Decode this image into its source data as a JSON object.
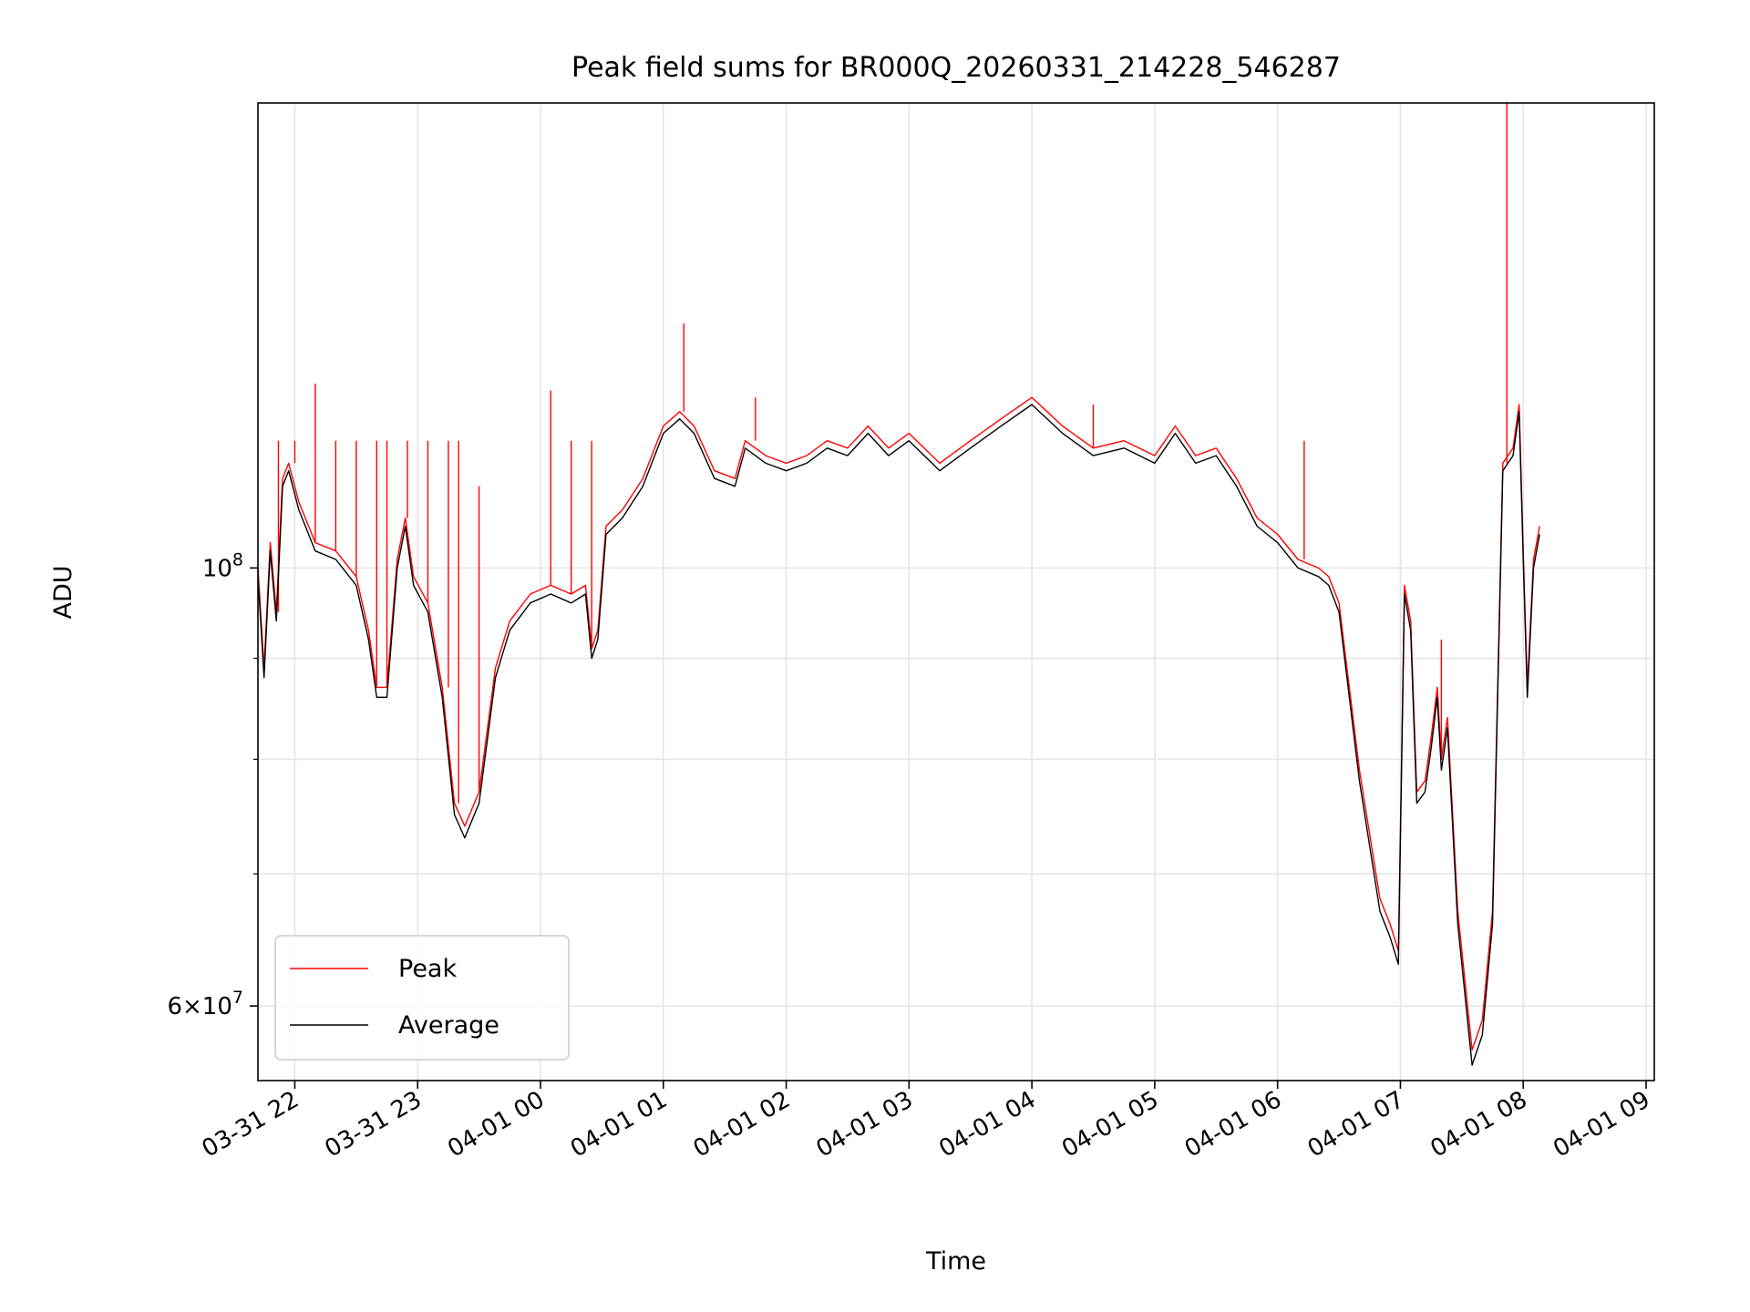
{
  "chart_data": {
    "type": "line",
    "title": "Peak field sums for BR000Q_20260331_214228_546287",
    "xlabel": "Time",
    "ylabel": "ADU",
    "yscale": "log",
    "ylim": [
      55000000.0,
      172000000.0
    ],
    "xlim": [
      "2026-03-31 21:42",
      "2026-04-01 09:04"
    ],
    "grid": true,
    "legend_position": "lower left",
    "colors": {
      "peak": "#ff0000",
      "average": "#000000",
      "grid": "#e5e5e5"
    },
    "x_ticks": [
      {
        "label": "03-31 22",
        "t": "2026-03-31 22:00"
      },
      {
        "label": "03-31 23",
        "t": "2026-03-31 23:00"
      },
      {
        "label": "04-01 00",
        "t": "2026-04-01 00:00"
      },
      {
        "label": "04-01 01",
        "t": "2026-04-01 01:00"
      },
      {
        "label": "04-01 02",
        "t": "2026-04-01 02:00"
      },
      {
        "label": "04-01 03",
        "t": "2026-04-01 03:00"
      },
      {
        "label": "04-01 04",
        "t": "2026-04-01 04:00"
      },
      {
        "label": "04-01 05",
        "t": "2026-04-01 05:00"
      },
      {
        "label": "04-01 06",
        "t": "2026-04-01 06:00"
      },
      {
        "label": "04-01 07",
        "t": "2026-04-01 07:00"
      },
      {
        "label": "04-01 08",
        "t": "2026-04-01 08:00"
      },
      {
        "label": "04-01 09",
        "t": "2026-04-01 09:00"
      }
    ],
    "y_ticks_major": [
      {
        "base": "10",
        "exp": "8",
        "value": 100000000.0
      },
      {
        "base": "6×10",
        "exp": "7",
        "value": 60000000.0
      }
    ],
    "y_ticks_minor": [
      70000000.0,
      80000000.0,
      90000000.0
    ],
    "series": [
      {
        "name": "Average",
        "points": [
          [
            "2026-03-31 21:42",
            99000000.0
          ],
          [
            "2026-03-31 21:45",
            88000000.0
          ],
          [
            "2026-03-31 21:48",
            102000000.0
          ],
          [
            "2026-03-31 21:51",
            94000000.0
          ],
          [
            "2026-03-31 21:54",
            110000000.0
          ],
          [
            "2026-03-31 21:57",
            112000000.0
          ],
          [
            "2026-03-31 22:02",
            107000000.0
          ],
          [
            "2026-03-31 22:10",
            102000000.0
          ],
          [
            "2026-03-31 22:20",
            101000000.0
          ],
          [
            "2026-03-31 22:30",
            98000000.0
          ],
          [
            "2026-03-31 22:36",
            92000000.0
          ],
          [
            "2026-03-31 22:40",
            86000000.0
          ],
          [
            "2026-03-31 22:45",
            86000000.0
          ],
          [
            "2026-03-31 22:50",
            100000000.0
          ],
          [
            "2026-03-31 22:54",
            105000000.0
          ],
          [
            "2026-03-31 22:58",
            98000000.0
          ],
          [
            "2026-03-31 23:05",
            95000000.0
          ],
          [
            "2026-03-31 23:12",
            86000000.0
          ],
          [
            "2026-03-31 23:18",
            75000000.0
          ],
          [
            "2026-03-31 23:23",
            73000000.0
          ],
          [
            "2026-03-31 23:30",
            76000000.0
          ],
          [
            "2026-03-31 23:38",
            88000000.0
          ],
          [
            "2026-03-31 23:45",
            93000000.0
          ],
          [
            "2026-03-31 23:55",
            96000000.0
          ],
          [
            "2026-04-01 00:05",
            97000000.0
          ],
          [
            "2026-04-01 00:15",
            96000000.0
          ],
          [
            "2026-04-01 00:22",
            97000000.0
          ],
          [
            "2026-04-01 00:25",
            90000000.0
          ],
          [
            "2026-04-01 00:28",
            92000000.0
          ],
          [
            "2026-04-01 00:32",
            104000000.0
          ],
          [
            "2026-04-01 00:40",
            106000000.0
          ],
          [
            "2026-04-01 00:50",
            110000000.0
          ],
          [
            "2026-04-01 01:00",
            117000000.0
          ],
          [
            "2026-04-01 01:08",
            119000000.0
          ],
          [
            "2026-04-01 01:15",
            117000000.0
          ],
          [
            "2026-04-01 01:25",
            111000000.0
          ],
          [
            "2026-04-01 01:35",
            110000000.0
          ],
          [
            "2026-04-01 01:40",
            115000000.0
          ],
          [
            "2026-04-01 01:50",
            113000000.0
          ],
          [
            "2026-04-01 02:00",
            112000000.0
          ],
          [
            "2026-04-01 02:10",
            113000000.0
          ],
          [
            "2026-04-01 02:20",
            115000000.0
          ],
          [
            "2026-04-01 02:30",
            114000000.0
          ],
          [
            "2026-04-01 02:40",
            117000000.0
          ],
          [
            "2026-04-01 02:50",
            114000000.0
          ],
          [
            "2026-04-01 03:00",
            116000000.0
          ],
          [
            "2026-04-01 03:15",
            112000000.0
          ],
          [
            "2026-04-01 03:30",
            115000000.0
          ],
          [
            "2026-04-01 03:45",
            118000000.0
          ],
          [
            "2026-04-01 04:00",
            121000000.0
          ],
          [
            "2026-04-01 04:15",
            117000000.0
          ],
          [
            "2026-04-01 04:30",
            114000000.0
          ],
          [
            "2026-04-01 04:45",
            115000000.0
          ],
          [
            "2026-04-01 05:00",
            113000000.0
          ],
          [
            "2026-04-01 05:10",
            117000000.0
          ],
          [
            "2026-04-01 05:20",
            113000000.0
          ],
          [
            "2026-04-01 05:30",
            114000000.0
          ],
          [
            "2026-04-01 05:40",
            110000000.0
          ],
          [
            "2026-04-01 05:50",
            105000000.0
          ],
          [
            "2026-04-01 05:55",
            104000000.0
          ],
          [
            "2026-04-01 06:00",
            103000000.0
          ],
          [
            "2026-04-01 06:10",
            100000000.0
          ],
          [
            "2026-04-01 06:20",
            99000000.0
          ],
          [
            "2026-04-01 06:25",
            98000000.0
          ],
          [
            "2026-04-01 06:30",
            95000000.0
          ],
          [
            "2026-04-01 06:40",
            78000000.0
          ],
          [
            "2026-04-01 06:50",
            67000000.0
          ],
          [
            "2026-04-01 06:55",
            65000000.0
          ],
          [
            "2026-04-01 06:59",
            63000000.0
          ],
          [
            "2026-04-01 07:02",
            97000000.0
          ],
          [
            "2026-04-01 07:05",
            93000000.0
          ],
          [
            "2026-04-01 07:08",
            76000000.0
          ],
          [
            "2026-04-01 07:12",
            77000000.0
          ],
          [
            "2026-04-01 07:15",
            81000000.0
          ],
          [
            "2026-04-01 07:18",
            86000000.0
          ],
          [
            "2026-04-01 07:20",
            79000000.0
          ],
          [
            "2026-04-01 07:23",
            83000000.0
          ],
          [
            "2026-04-01 07:28",
            66000000.0
          ],
          [
            "2026-04-01 07:35",
            56000000.0
          ],
          [
            "2026-04-01 07:40",
            58000000.0
          ],
          [
            "2026-04-01 07:45",
            66000000.0
          ],
          [
            "2026-04-01 07:50",
            112000000.0
          ],
          [
            "2026-04-01 07:55",
            114000000.0
          ],
          [
            "2026-04-01 07:58",
            120000000.0
          ],
          [
            "2026-04-01 08:00",
            101000000.0
          ],
          [
            "2026-04-01 08:02",
            86000000.0
          ],
          [
            "2026-04-01 08:05",
            100000000.0
          ],
          [
            "2026-04-01 08:08",
            104000000.0
          ]
        ]
      },
      {
        "name": "Peak",
        "points": [
          [
            "2026-03-31 21:42",
            100000000.0
          ],
          [
            "2026-03-31 21:45",
            89000000.0
          ],
          [
            "2026-03-31 21:48",
            103000000.0
          ],
          [
            "2026-03-31 21:51",
            95000000.0
          ],
          [
            "2026-03-31 21:54",
            111000000.0
          ],
          [
            "2026-03-31 21:57",
            113000000.0
          ],
          [
            "2026-03-31 22:02",
            108000000.0
          ],
          [
            "2026-03-31 22:10",
            103000000.0
          ],
          [
            "2026-03-31 22:20",
            102000000.0
          ],
          [
            "2026-03-31 22:30",
            99000000.0
          ],
          [
            "2026-03-31 22:36",
            93000000.0
          ],
          [
            "2026-03-31 22:40",
            87000000.0
          ],
          [
            "2026-03-31 22:45",
            87000000.0
          ],
          [
            "2026-03-31 22:50",
            101000000.0
          ],
          [
            "2026-03-31 22:54",
            106000000.0
          ],
          [
            "2026-03-31 22:58",
            99000000.0
          ],
          [
            "2026-03-31 23:05",
            96000000.0
          ],
          [
            "2026-03-31 23:12",
            87000000.0
          ],
          [
            "2026-03-31 23:18",
            76000000.0
          ],
          [
            "2026-03-31 23:23",
            74000000.0
          ],
          [
            "2026-03-31 23:30",
            77000000.0
          ],
          [
            "2026-03-31 23:38",
            89000000.0
          ],
          [
            "2026-03-31 23:45",
            94000000.0
          ],
          [
            "2026-03-31 23:55",
            97000000.0
          ],
          [
            "2026-04-01 00:05",
            98000000.0
          ],
          [
            "2026-04-01 00:15",
            97000000.0
          ],
          [
            "2026-04-01 00:22",
            98000000.0
          ],
          [
            "2026-04-01 00:25",
            91000000.0
          ],
          [
            "2026-04-01 00:28",
            93000000.0
          ],
          [
            "2026-04-01 00:32",
            105000000.0
          ],
          [
            "2026-04-01 00:40",
            107000000.0
          ],
          [
            "2026-04-01 00:50",
            111000000.0
          ],
          [
            "2026-04-01 01:00",
            118000000.0
          ],
          [
            "2026-04-01 01:08",
            120000000.0
          ],
          [
            "2026-04-01 01:15",
            118000000.0
          ],
          [
            "2026-04-01 01:25",
            112000000.0
          ],
          [
            "2026-04-01 01:35",
            111000000.0
          ],
          [
            "2026-04-01 01:40",
            116000000.0
          ],
          [
            "2026-04-01 01:50",
            114000000.0
          ],
          [
            "2026-04-01 02:00",
            113000000.0
          ],
          [
            "2026-04-01 02:10",
            114000000.0
          ],
          [
            "2026-04-01 02:20",
            116000000.0
          ],
          [
            "2026-04-01 02:30",
            115000000.0
          ],
          [
            "2026-04-01 02:40",
            118000000.0
          ],
          [
            "2026-04-01 02:50",
            115000000.0
          ],
          [
            "2026-04-01 03:00",
            117000000.0
          ],
          [
            "2026-04-01 03:15",
            113000000.0
          ],
          [
            "2026-04-01 03:30",
            116000000.0
          ],
          [
            "2026-04-01 03:45",
            119000000.0
          ],
          [
            "2026-04-01 04:00",
            122000000.0
          ],
          [
            "2026-04-01 04:15",
            118000000.0
          ],
          [
            "2026-04-01 04:30",
            115000000.0
          ],
          [
            "2026-04-01 04:45",
            116000000.0
          ],
          [
            "2026-04-01 05:00",
            114000000.0
          ],
          [
            "2026-04-01 05:10",
            118000000.0
          ],
          [
            "2026-04-01 05:20",
            114000000.0
          ],
          [
            "2026-04-01 05:30",
            115000000.0
          ],
          [
            "2026-04-01 05:40",
            111000000.0
          ],
          [
            "2026-04-01 05:50",
            106000000.0
          ],
          [
            "2026-04-01 05:55",
            105000000.0
          ],
          [
            "2026-04-01 06:00",
            104000000.0
          ],
          [
            "2026-04-01 06:10",
            101000000.0
          ],
          [
            "2026-04-01 06:20",
            100000000.0
          ],
          [
            "2026-04-01 06:25",
            99000000.0
          ],
          [
            "2026-04-01 06:30",
            96000000.0
          ],
          [
            "2026-04-01 06:40",
            79000000.0
          ],
          [
            "2026-04-01 06:50",
            68000000.0
          ],
          [
            "2026-04-01 06:55",
            66000000.0
          ],
          [
            "2026-04-01 06:59",
            64000000.0
          ],
          [
            "2026-04-01 07:02",
            98000000.0
          ],
          [
            "2026-04-01 07:05",
            94000000.0
          ],
          [
            "2026-04-01 07:08",
            77000000.0
          ],
          [
            "2026-04-01 07:12",
            78000000.0
          ],
          [
            "2026-04-01 07:15",
            82000000.0
          ],
          [
            "2026-04-01 07:18",
            87000000.0
          ],
          [
            "2026-04-01 07:20",
            80000000.0
          ],
          [
            "2026-04-01 07:23",
            84000000.0
          ],
          [
            "2026-04-01 07:28",
            67000000.0
          ],
          [
            "2026-04-01 07:35",
            57000000.0
          ],
          [
            "2026-04-01 07:40",
            59000000.0
          ],
          [
            "2026-04-01 07:45",
            67000000.0
          ],
          [
            "2026-04-01 07:50",
            113000000.0
          ],
          [
            "2026-04-01 07:55",
            115000000.0
          ],
          [
            "2026-04-01 07:58",
            121000000.0
          ],
          [
            "2026-04-01 08:00",
            102000000.0
          ],
          [
            "2026-04-01 08:02",
            87000000.0
          ],
          [
            "2026-04-01 08:05",
            101000000.0
          ],
          [
            "2026-04-01 08:08",
            105000000.0
          ]
        ],
        "spikes": [
          [
            "2026-03-31 21:52",
            116000000.0
          ],
          [
            "2026-03-31 22:00",
            116000000.0
          ],
          [
            "2026-03-31 22:10",
            124000000.0
          ],
          [
            "2026-03-31 22:20",
            116000000.0
          ],
          [
            "2026-03-31 22:30",
            116000000.0
          ],
          [
            "2026-03-31 22:40",
            116000000.0
          ],
          [
            "2026-03-31 22:45",
            116000000.0
          ],
          [
            "2026-03-31 22:55",
            116000000.0
          ],
          [
            "2026-03-31 23:05",
            116000000.0
          ],
          [
            "2026-03-31 23:15",
            116000000.0
          ],
          [
            "2026-03-31 23:20",
            116000000.0
          ],
          [
            "2026-03-31 23:30",
            110000000.0
          ],
          [
            "2026-04-01 00:05",
            123000000.0
          ],
          [
            "2026-04-01 00:15",
            116000000.0
          ],
          [
            "2026-04-01 00:25",
            116000000.0
          ],
          [
            "2026-04-01 01:10",
            133000000.0
          ],
          [
            "2026-04-01 01:45",
            122000000.0
          ],
          [
            "2026-04-01 04:30",
            121000000.0
          ],
          [
            "2026-04-01 06:13",
            116000000.0
          ],
          [
            "2026-04-01 07:20",
            92000000.0
          ],
          [
            "2026-04-01 07:52",
            172000000.0
          ]
        ]
      }
    ]
  }
}
